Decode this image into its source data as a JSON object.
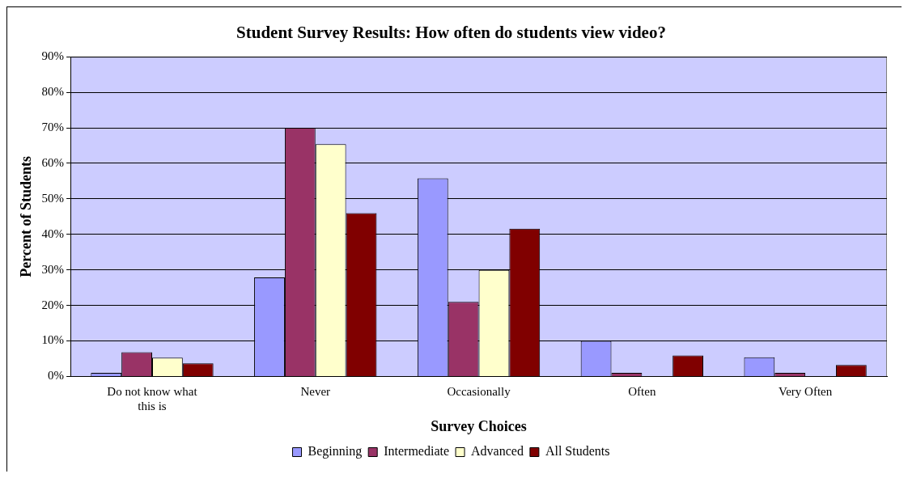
{
  "chart_data": {
    "type": "bar",
    "title": "Student Survey Results: How often do students view video?",
    "xlabel": "Survey Choices",
    "ylabel": "Percent of Students",
    "categories": [
      "Do not know what this is",
      "Never",
      "Occasionally",
      "Often",
      "Very Often"
    ],
    "series": [
      {
        "name": "Beginning",
        "color": "#9999ff",
        "values": [
          1,
          27.9,
          55.8,
          10,
          5.4
        ]
      },
      {
        "name": "Intermediate",
        "color": "#993366",
        "values": [
          6.8,
          70,
          21,
          1,
          1
        ]
      },
      {
        "name": "Advanced",
        "color": "#ffffcc",
        "values": [
          5.3,
          65.4,
          30,
          0,
          0
        ]
      },
      {
        "name": "All Students",
        "color": "#800000",
        "values": [
          3.7,
          46,
          41.6,
          5.9,
          3.2
        ]
      }
    ],
    "ylim": [
      0,
      90
    ],
    "yticks": [
      {
        "value": 0,
        "label": "0%"
      },
      {
        "value": 10,
        "label": "10%"
      },
      {
        "value": 20,
        "label": "20%"
      },
      {
        "value": 30,
        "label": "30%"
      },
      {
        "value": 40,
        "label": "40%"
      },
      {
        "value": 50,
        "label": "50%"
      },
      {
        "value": 60,
        "label": "60%"
      },
      {
        "value": 70,
        "label": "70%"
      },
      {
        "value": 80,
        "label": "80%"
      },
      {
        "value": 90,
        "label": "90%"
      }
    ],
    "grid": "y",
    "legend": "bottom"
  }
}
